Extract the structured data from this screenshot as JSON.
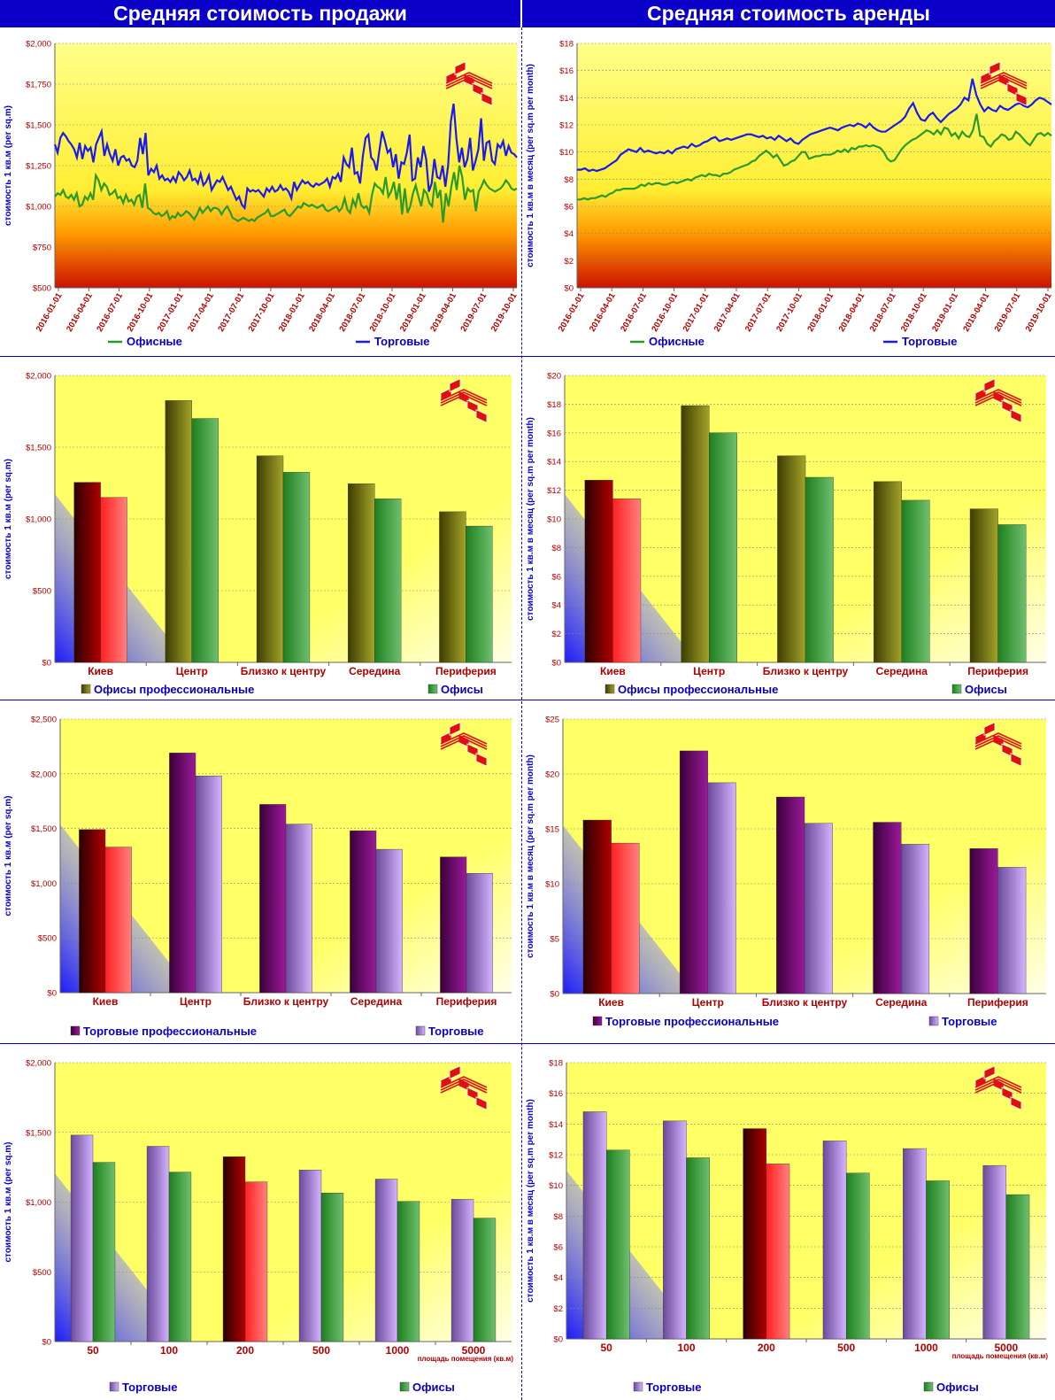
{
  "headers": {
    "sale": "Средняя стоимость продажи",
    "rent": "Средняя стоимость аренды"
  },
  "colors": {
    "header": "#0a00c8",
    "plot_yellow": "#ffff66",
    "axis_blue": "#0a00c8",
    "label_red": "#b00000",
    "office_green": "#2a9a2a",
    "retail_blue": "#1a1aee"
  },
  "charts": [
    {
      "id": "sale_ts",
      "chart_data": {
        "type": "line",
        "ylabel": "стоимость 1 кв.м (per sq.m)",
        "ylim": [
          500,
          2000
        ],
        "yticks": [
          "$500",
          "$750",
          "$1,000",
          "$1,250",
          "$1,500",
          "$1,750",
          "$2,000"
        ],
        "xticks": [
          "2016-01-01",
          "2016-04-01",
          "2016-07-01",
          "2016-10-01",
          "2017-01-01",
          "2017-04-01",
          "2017-07-01",
          "2017-10-01",
          "2018-01-01",
          "2018-04-01",
          "2018-07-01",
          "2018-10-01",
          "2019-01-01",
          "2019-04-01",
          "2019-07-01",
          "2019-10-01"
        ],
        "series": [
          {
            "name": "Офисные",
            "color": "#2a9a2a",
            "values": [
              1060,
              1080,
              1070,
              1100,
              1060,
              1050,
              1070,
              1040,
              1080,
              1000,
              1010,
              1060,
              1040,
              1080,
              1040,
              1190,
              1160,
              1100,
              1140,
              1120,
              1070,
              1080,
              1100,
              1050,
              1060,
              1020,
              1070,
              1030,
              1040,
              1010,
              1060,
              1070,
              990,
              1140,
              990,
              980,
              960,
              950,
              960,
              940,
              950,
              970,
              920,
              940,
              930,
              960,
              940,
              950,
              970,
              960,
              940,
              920,
              950,
              990,
              960,
              980,
              1000,
              970,
              990,
              990,
              980,
              950,
              980,
              1000,
              970,
              930,
              920,
              910,
              920,
              930,
              920,
              910,
              920,
              910,
              930,
              940,
              950,
              960,
              980,
              940,
              940,
              950,
              960,
              970,
              980,
              950,
              940,
              960,
              980,
              1000,
              990,
              1020,
              1010,
              1000,
              1010,
              1000,
              990,
              1000,
              1010,
              980,
              970,
              980,
              990,
              1000,
              970,
              990,
              1050,
              980,
              960,
              1040,
              1000,
              1080,
              1010,
              990,
              1000,
              960,
              1070,
              1140,
              1120,
              1110,
              1080,
              1180,
              1060,
              1090,
              1150,
              1040,
              1140,
              950,
              1110,
              960,
              1000,
              1080,
              1130,
              1060,
              1000,
              1100,
              1080,
              1020,
              1000,
              1150,
              1050,
              1100,
              900,
              1080,
              1000,
              1120,
              1210,
              1100,
              1250,
              1180,
              1040,
              1110,
              1090,
              1100,
              970,
              1090,
              1120,
              1160,
              1130,
              1110,
              1100,
              1090,
              1100,
              1110,
              1130,
              1160,
              1140,
              1110,
              1100,
              1110
            ]
          },
          {
            "name": "Торговые",
            "color": "#1a1aee",
            "values": [
              1380,
              1330,
              1420,
              1450,
              1430,
              1400,
              1380,
              1350,
              1300,
              1390,
              1290,
              1370,
              1340,
              1360,
              1270,
              1380,
              1420,
              1460,
              1310,
              1380,
              1320,
              1280,
              1350,
              1250,
              1300,
              1310,
              1280,
              1290,
              1250,
              1240,
              1280,
              1420,
              1320,
              1450,
              1190,
              1230,
              1210,
              1250,
              1170,
              1190,
              1160,
              1170,
              1150,
              1180,
              1150,
              1210,
              1190,
              1160,
              1180,
              1220,
              1160,
              1170,
              1140,
              1200,
              1130,
              1150,
              1190,
              1100,
              1130,
              1160,
              1150,
              1180,
              1140,
              1100,
              1120,
              1080,
              1040,
              1060,
              1010,
              990,
              1110,
              1090,
              1100,
              1090,
              1100,
              1080,
              1060,
              1110,
              1090,
              1120,
              1090,
              1100,
              1130,
              1100,
              1110,
              1090,
              1050,
              1150,
              1100,
              1130,
              1160,
              1140,
              1150,
              1130,
              1120,
              1140,
              1130,
              1140,
              1150,
              1170,
              1120,
              1180,
              1170,
              1200,
              1150,
              1300,
              1260,
              1240,
              1360,
              1200,
              1210,
              1140,
              1310,
              1420,
              1440,
              1300,
              1280,
              1220,
              1340,
              1460,
              1400,
              1330,
              1350,
              1240,
              1320,
              1170,
              1270,
              1260,
              1330,
              1440,
              1160,
              1170,
              1300,
              1240,
              1370,
              1290,
              1090,
              1140,
              1290,
              1180,
              1170,
              1250,
              1120,
              1250,
              1520,
              1630,
              1420,
              1270,
              1360,
              1240,
              1290,
              1420,
              1220,
              1280,
              1350,
              1540,
              1280,
              1390,
              1400,
              1280,
              1260,
              1380,
              1360,
              1400,
              1310,
              1370,
              1330,
              1320,
              1300
            ]
          }
        ]
      }
    },
    {
      "id": "rent_ts",
      "chart_data": {
        "type": "line",
        "ylabel": "стоимость 1 кв.м в месяц (per sq.m per month)",
        "ylim": [
          0,
          18
        ],
        "yticks": [
          "$0",
          "$2",
          "$4",
          "$6",
          "$8",
          "$10",
          "$12",
          "$14",
          "$16",
          "$18"
        ],
        "xticks": [
          "2016-01-01",
          "2016-04-01",
          "2016-07-01",
          "2016-10-01",
          "2017-01-01",
          "2017-04-01",
          "2017-07-01",
          "2017-10-01",
          "2018-01-01",
          "2018-04-01",
          "2018-07-01",
          "2018-10-01",
          "2019-01-01",
          "2019-04-01",
          "2019-07-01",
          "2019-10-01"
        ],
        "series": [
          {
            "name": "Офисные",
            "color": "#2a9a2a",
            "values": [
              6.5,
              6.5,
              6.6,
              6.5,
              6.6,
              6.6,
              6.7,
              6.8,
              6.7,
              6.9,
              7.0,
              7.2,
              7.2,
              7.3,
              7.3,
              7.3,
              7.3,
              7.4,
              7.6,
              7.5,
              7.7,
              7.6,
              7.7,
              7.7,
              7.6,
              7.6,
              7.7,
              7.8,
              7.7,
              7.8,
              7.9,
              8.0,
              7.9,
              8.1,
              8.2,
              8.3,
              8.2,
              8.4,
              8.3,
              8.3,
              8.2,
              8.4,
              8.4,
              8.5,
              8.7,
              8.8,
              8.9,
              9.0,
              9.1,
              9.3,
              9.4,
              9.7,
              9.9,
              10.1,
              9.9,
              9.6,
              9.8,
              9.4,
              9.0,
              9.1,
              9.3,
              9.4,
              9.7,
              10.0,
              10.0,
              9.5,
              9.6,
              9.7,
              9.7,
              9.8,
              9.8,
              9.8,
              9.9,
              10.1,
              10.0,
              10.2,
              10.0,
              10.3,
              10.2,
              10.4,
              10.4,
              10.5,
              10.4,
              10.5,
              10.4,
              10.3,
              10.0,
              9.5,
              9.3,
              9.4,
              9.8,
              10.2,
              10.5,
              10.7,
              10.9,
              11.0,
              11.2,
              11.4,
              11.6,
              11.5,
              11.3,
              11.6,
              11.3,
              11.8,
              11.7,
              11.2,
              11.4,
              11.0,
              11.5,
              11.2,
              11.1,
              11.6,
              12.8,
              11.2,
              11.1,
              10.6,
              10.4,
              10.8,
              11.0,
              11.3,
              11.2,
              10.9,
              11.0,
              11.5,
              11.3,
              11.0,
              10.7,
              10.5,
              10.9,
              11.3,
              11.4,
              11.2,
              11.4,
              11.2
            ]
          },
          {
            "name": "Торговые",
            "color": "#1a1aee",
            "values": [
              8.7,
              8.7,
              8.8,
              8.6,
              8.7,
              8.6,
              8.7,
              8.8,
              9.0,
              9.2,
              9.4,
              9.8,
              10.0,
              10.2,
              10.1,
              10.0,
              10.3,
              10.0,
              10.1,
              10.0,
              9.9,
              10.0,
              9.9,
              10.1,
              9.9,
              10.2,
              10.3,
              10.4,
              10.3,
              10.6,
              10.4,
              10.5,
              10.7,
              10.8,
              11.0,
              11.1,
              10.8,
              10.9,
              11.0,
              10.9,
              11.0,
              11.1,
              11.2,
              11.3,
              11.3,
              11.2,
              11.1,
              11.2,
              11.0,
              11.1,
              10.9,
              11.2,
              11.0,
              10.8,
              11.0,
              10.7,
              10.6,
              10.9,
              11.1,
              11.3,
              11.4,
              11.5,
              11.6,
              11.7,
              11.8,
              11.7,
              11.6,
              11.8,
              11.9,
              12.0,
              11.9,
              12.1,
              12.0,
              11.8,
              12.1,
              11.8,
              11.6,
              11.5,
              11.5,
              11.7,
              11.9,
              12.1,
              12.3,
              12.6,
              13.2,
              13.6,
              12.9,
              12.4,
              12.3,
              12.7,
              12.9,
              12.5,
              12.2,
              12.5,
              12.8,
              13.0,
              13.2,
              13.5,
              14.0,
              13.8,
              15.4,
              14.2,
              13.5,
              13.0,
              13.3,
              13.1,
              13.0,
              13.4,
              13.2,
              13.1,
              13.3,
              13.5,
              13.6,
              13.4,
              13.3,
              13.5,
              13.8,
              14.0,
              13.9,
              13.7,
              13.5
            ]
          }
        ]
      }
    },
    {
      "id": "sale_off",
      "chart_data": {
        "type": "bar",
        "ylabel": "стоимость 1 кв.м (per sq.m)",
        "ylim": [
          0,
          2000
        ],
        "yticks": [
          "$0",
          "$500",
          "$1,000",
          "$1,500",
          "$2,000"
        ],
        "categories": [
          "Киев",
          "Центр",
          "Близко к центру",
          "Середина",
          "Периферия"
        ],
        "series": [
          {
            "name": "Офисы профессиональные",
            "values": [
              1255,
              1825,
              1440,
              1245,
              1050
            ]
          },
          {
            "name": "Офисы",
            "values": [
              1150,
              1700,
              1325,
              1140,
              950
            ]
          }
        ]
      }
    },
    {
      "id": "rent_off",
      "chart_data": {
        "type": "bar",
        "ylabel": "стоимость 1 кв.м в месяц (per sq.m per month)",
        "ylim": [
          0,
          20
        ],
        "yticks": [
          "$0",
          "$2",
          "$4",
          "$6",
          "$8",
          "$10",
          "$12",
          "$14",
          "$16",
          "$18",
          "$20"
        ],
        "categories": [
          "Киев",
          "Центр",
          "Близко к центру",
          "Середина",
          "Периферия"
        ],
        "series": [
          {
            "name": "Офисы профессиональные",
            "values": [
              12.7,
              17.9,
              14.4,
              12.6,
              10.7
            ]
          },
          {
            "name": "Офисы",
            "values": [
              11.4,
              16.0,
              12.9,
              11.3,
              9.6
            ]
          }
        ]
      }
    },
    {
      "id": "sale_ret",
      "chart_data": {
        "type": "bar",
        "ylabel": "стоимость 1 кв.м (per sq.m)",
        "ylim": [
          0,
          2500
        ],
        "yticks": [
          "$0",
          "$500",
          "$1,000",
          "$1,500",
          "$2,000",
          "$2,500"
        ],
        "categories": [
          "Киев",
          "Центр",
          "Близко к центру",
          "Середина",
          "Периферия"
        ],
        "series": [
          {
            "name": "Торговые профессиональные",
            "values": [
              1490,
              2190,
              1720,
              1480,
              1240
            ]
          },
          {
            "name": "Торговые",
            "values": [
              1330,
              1980,
              1540,
              1310,
              1090
            ]
          }
        ]
      }
    },
    {
      "id": "rent_ret",
      "chart_data": {
        "type": "bar",
        "ylabel": "стоимость 1 кв.м в месяц (per sq.m per month)",
        "ylim": [
          0,
          25
        ],
        "yticks": [
          "$0",
          "$5",
          "$10",
          "$15",
          "$20",
          "$25"
        ],
        "categories": [
          "Киев",
          "Центр",
          "Близко к центру",
          "Середина",
          "Периферия"
        ],
        "series": [
          {
            "name": "Торговые профессиональные",
            "values": [
              15.8,
              22.1,
              17.9,
              15.6,
              13.2
            ]
          },
          {
            "name": "Торговые",
            "values": [
              13.7,
              19.2,
              15.5,
              13.6,
              11.5
            ]
          }
        ]
      }
    },
    {
      "id": "sale_area",
      "chart_data": {
        "type": "bar",
        "ylabel": "стоимость 1 кв.м (per sq.m)",
        "xlabel": "площадь помещения (кв.м)",
        "ylim": [
          0,
          2000
        ],
        "yticks": [
          "$0",
          "$500",
          "$1,000",
          "$1,500",
          "$2,000"
        ],
        "categories": [
          "50",
          "100",
          "200",
          "500",
          "1000",
          "5000"
        ],
        "series": [
          {
            "name": "Торговые",
            "values": [
              1480,
              1400,
              1325,
              1230,
              1165,
              1020
            ]
          },
          {
            "name": "Офисы",
            "values": [
              1285,
              1215,
              1145,
              1065,
              1005,
              885
            ]
          }
        ]
      }
    },
    {
      "id": "rent_area",
      "chart_data": {
        "type": "bar",
        "ylabel": "стоимость 1 кв.м в месяц (per sq.m per month)",
        "xlabel": "площадь помещения (кв.м)",
        "ylim": [
          0,
          18
        ],
        "yticks": [
          "$0",
          "$2",
          "$4",
          "$6",
          "$8",
          "$10",
          "$12",
          "$14",
          "$16",
          "$18"
        ],
        "categories": [
          "50",
          "100",
          "200",
          "500",
          "1000",
          "5000"
        ],
        "series": [
          {
            "name": "Торговые",
            "values": [
              14.8,
              14.2,
              13.7,
              12.9,
              12.4,
              11.3
            ]
          },
          {
            "name": "Офисы",
            "values": [
              12.3,
              11.8,
              11.4,
              10.8,
              10.3,
              9.4
            ]
          }
        ]
      }
    }
  ]
}
